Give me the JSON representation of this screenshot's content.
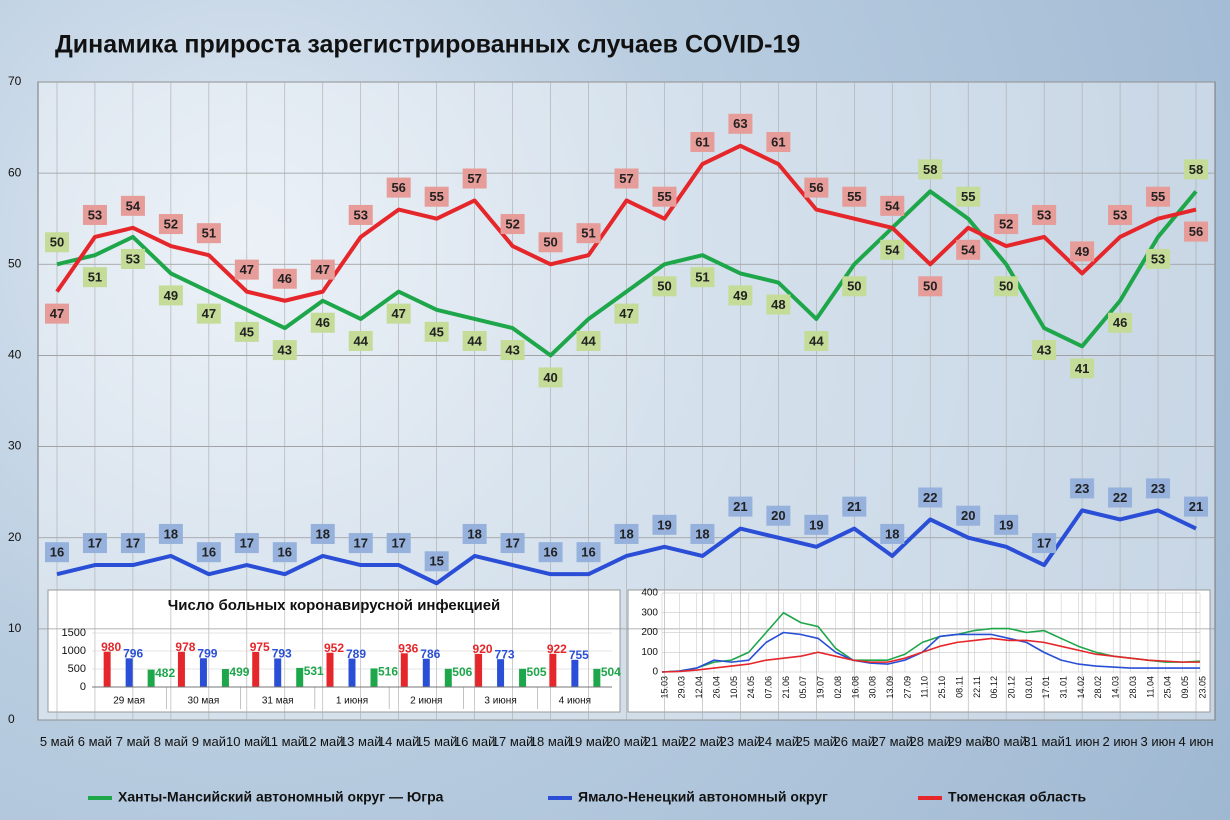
{
  "chart_data": [
    {
      "type": "line",
      "title": "Динамика прироста зарегистрированных случаев COVID-19",
      "categories": [
        "5 май",
        "6 май",
        "7 май",
        "8 май",
        "9 май",
        "10 май",
        "11 май",
        "12 май",
        "13 май",
        "14 май",
        "15 май",
        "16 май",
        "17 май",
        "18 май",
        "19 май",
        "20 май",
        "21 май",
        "22 май",
        "23 май",
        "24 май",
        "25 май",
        "26 май",
        "27 май",
        "28 май",
        "29 май",
        "30 май",
        "31 май",
        "1 июн",
        "2 июн",
        "3 июн",
        "4 июн"
      ],
      "series": [
        {
          "name": "Ханты-Мансийский автономный округ — Югра",
          "color": "#1ea64a",
          "label_color": "#c4dc98",
          "values": [
            50,
            51,
            53,
            49,
            47,
            45,
            43,
            46,
            44,
            47,
            45,
            44,
            43,
            40,
            44,
            47,
            50,
            51,
            49,
            48,
            44,
            50,
            54,
            58,
            55,
            50,
            43,
            41,
            46,
            53,
            58
          ]
        },
        {
          "name": "Ямало-Ненецкий автономный округ",
          "color": "#2a4fd6",
          "label_color": "#95b1dc",
          "values": [
            16,
            17,
            17,
            18,
            16,
            17,
            16,
            18,
            17,
            17,
            15,
            18,
            17,
            16,
            16,
            18,
            19,
            18,
            21,
            20,
            19,
            21,
            18,
            22,
            20,
            19,
            17,
            23,
            22,
            23,
            21
          ]
        },
        {
          "name": "Тюменская область",
          "color": "#e5262a",
          "label_color": "#e69c98",
          "values": [
            47,
            53,
            54,
            52,
            51,
            47,
            46,
            47,
            53,
            56,
            55,
            57,
            52,
            50,
            51,
            57,
            55,
            61,
            63,
            61,
            56,
            55,
            54,
            50,
            54,
            52,
            53,
            49,
            53,
            55,
            56
          ]
        }
      ],
      "ylim": [
        0,
        70
      ],
      "yticks": [
        0,
        10,
        20,
        30,
        40,
        50,
        60,
        70
      ],
      "grid": true,
      "legend": "bottom"
    },
    {
      "type": "bar",
      "title": "Число больных коронавирусной инфекцией",
      "categories": [
        "29 мая",
        "30 мая",
        "31 мая",
        "1 июня",
        "2 июня",
        "3 июня",
        "4 июня"
      ],
      "series": [
        {
          "color": "#e5262a",
          "values": [
            980,
            978,
            975,
            952,
            936,
            920,
            922
          ]
        },
        {
          "color": "#2a4fd6",
          "values": [
            796,
            799,
            793,
            789,
            786,
            773,
            755
          ]
        },
        {
          "color": "#1ea64a",
          "values": [
            482,
            499,
            531,
            516,
            506,
            505,
            504
          ]
        }
      ],
      "ylim": [
        0,
        1500
      ],
      "yticks": [
        0,
        500,
        1000,
        1500
      ],
      "grid": true
    },
    {
      "type": "line",
      "categories": [
        "15.03",
        "29.03",
        "12.04",
        "26.04",
        "10.05",
        "24.05",
        "07.06",
        "21.06",
        "05.07",
        "19.07",
        "02.08",
        "16.08",
        "30.08",
        "13.09",
        "27.09",
        "11.10",
        "25.10",
        "08.11",
        "22.11",
        "06.12",
        "20.12",
        "03.01",
        "17.01",
        "31.01",
        "14.02",
        "28.02",
        "14.03",
        "28.03",
        "11.04",
        "25.04",
        "09.05",
        "23.05"
      ],
      "series": [
        {
          "color": "#1ea64a",
          "values": [
            0,
            5,
            20,
            50,
            60,
            100,
            200,
            300,
            250,
            230,
            120,
            60,
            60,
            60,
            90,
            150,
            180,
            190,
            210,
            220,
            220,
            200,
            210,
            170,
            130,
            100,
            80,
            70,
            60,
            50,
            50,
            55
          ]
        },
        {
          "color": "#2a4fd6",
          "values": [
            0,
            5,
            20,
            60,
            50,
            60,
            150,
            200,
            190,
            170,
            100,
            60,
            45,
            40,
            60,
            100,
            180,
            190,
            190,
            190,
            170,
            150,
            100,
            60,
            40,
            30,
            25,
            20,
            20,
            20,
            20,
            20
          ]
        },
        {
          "color": "#e5262a",
          "values": [
            0,
            3,
            10,
            20,
            30,
            40,
            60,
            70,
            80,
            100,
            80,
            60,
            50,
            50,
            70,
            100,
            130,
            150,
            160,
            170,
            160,
            160,
            150,
            130,
            110,
            90,
            80,
            70,
            60,
            55,
            50,
            50
          ]
        }
      ],
      "ylim": [
        0,
        400
      ],
      "yticks": [
        0,
        100,
        200,
        300,
        400
      ],
      "grid": true
    }
  ]
}
